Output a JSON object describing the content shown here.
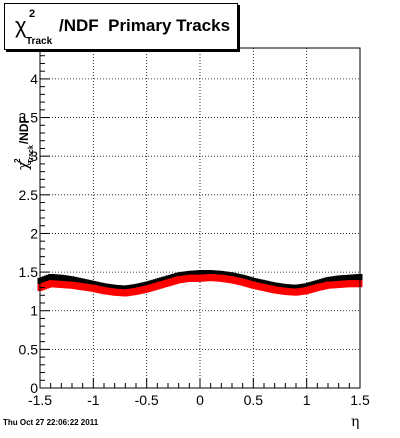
{
  "title": {
    "chi": "χ",
    "sup": "2",
    "sub": "Track",
    "rest": "/NDF  Primary Tracks"
  },
  "yaxis_title": {
    "chi": "χ",
    "sup": "2",
    "sub": "Track",
    "rest": "/NDF"
  },
  "xaxis_title": "η",
  "timestamp": "Thu Oct 27 22:06:22 2011",
  "colors": {
    "series_black": "#000000",
    "series_red": "#ff0000",
    "grid": "#000000",
    "frame": "#000000"
  },
  "chart_data": {
    "type": "scatter",
    "title": "χ²_Track/NDF  Primary Tracks",
    "xlabel": "η",
    "ylabel": "χ²_Track/NDF",
    "xlim": [
      -1.5,
      1.5
    ],
    "ylim": [
      0,
      4.4
    ],
    "grid": true,
    "xticks": [
      -1.5,
      -1,
      -0.5,
      0,
      0.5,
      1,
      1.5
    ],
    "xtick_labels": [
      "-1.5",
      "-1",
      "-0.5",
      "0",
      "0.5",
      "1",
      "1.5"
    ],
    "yticks": [
      0,
      0.5,
      1,
      1.5,
      2,
      2.5,
      3,
      3.5,
      4
    ],
    "ytick_labels": [
      "0",
      "0.5",
      "1",
      "1.5",
      "2",
      "2.5",
      "3",
      "3.5",
      "4"
    ],
    "x": [
      -1.5,
      -1.4,
      -1.3,
      -1.2,
      -1.1,
      -1.0,
      -0.9,
      -0.8,
      -0.7,
      -0.6,
      -0.5,
      -0.4,
      -0.3,
      -0.2,
      -0.1,
      0.0,
      0.1,
      0.2,
      0.3,
      0.4,
      0.5,
      0.6,
      0.7,
      0.8,
      0.9,
      1.0,
      1.1,
      1.2,
      1.3,
      1.4,
      1.5
    ],
    "series": [
      {
        "color": "#000000",
        "values": [
          1.38,
          1.43,
          1.42,
          1.4,
          1.37,
          1.34,
          1.31,
          1.29,
          1.28,
          1.3,
          1.33,
          1.37,
          1.41,
          1.45,
          1.47,
          1.48,
          1.48,
          1.47,
          1.45,
          1.42,
          1.38,
          1.35,
          1.32,
          1.3,
          1.29,
          1.31,
          1.35,
          1.39,
          1.41,
          1.42,
          1.43
        ]
      },
      {
        "color": "#ff0000",
        "values": [
          1.3,
          1.35,
          1.34,
          1.33,
          1.31,
          1.29,
          1.26,
          1.24,
          1.23,
          1.25,
          1.28,
          1.32,
          1.36,
          1.4,
          1.42,
          1.42,
          1.43,
          1.42,
          1.4,
          1.37,
          1.33,
          1.3,
          1.27,
          1.25,
          1.24,
          1.26,
          1.3,
          1.33,
          1.34,
          1.35,
          1.35
        ]
      }
    ]
  }
}
